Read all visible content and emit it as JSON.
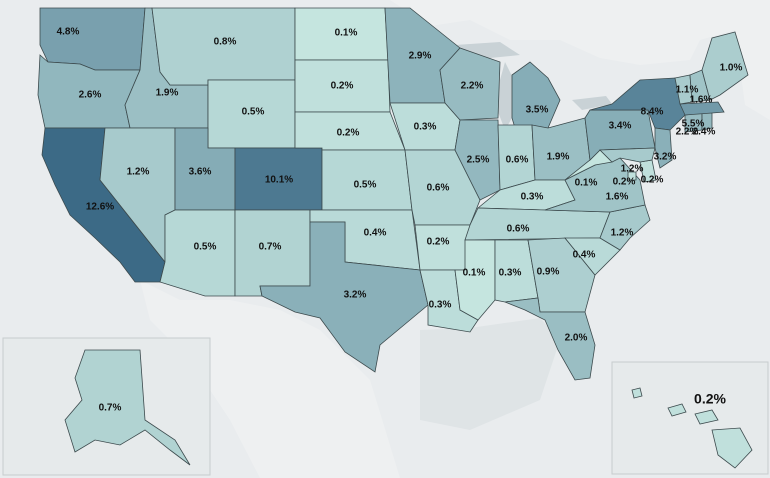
{
  "map": {
    "type": "choropleth",
    "region": "United States",
    "color_scale": {
      "low": "#cfeee6",
      "high": "#3c6a86"
    },
    "states": [
      {
        "id": "WA",
        "value": "4.8%"
      },
      {
        "id": "OR",
        "value": "2.6%"
      },
      {
        "id": "CA",
        "value": "12.6%"
      },
      {
        "id": "ID",
        "value": "1.9%"
      },
      {
        "id": "MT",
        "value": "0.8%"
      },
      {
        "id": "WY",
        "value": "0.5%"
      },
      {
        "id": "NV",
        "value": "1.2%"
      },
      {
        "id": "UT",
        "value": "3.6%"
      },
      {
        "id": "CO",
        "value": "10.1%"
      },
      {
        "id": "AZ",
        "value": "0.5%"
      },
      {
        "id": "NM",
        "value": "0.7%"
      },
      {
        "id": "ND",
        "value": "0.1%"
      },
      {
        "id": "SD",
        "value": "0.2%"
      },
      {
        "id": "NE",
        "value": "0.2%"
      },
      {
        "id": "KS",
        "value": "0.5%"
      },
      {
        "id": "OK",
        "value": "0.4%"
      },
      {
        "id": "TX",
        "value": "3.2%"
      },
      {
        "id": "MN",
        "value": "2.9%"
      },
      {
        "id": "IA",
        "value": "0.3%"
      },
      {
        "id": "MO",
        "value": "0.6%"
      },
      {
        "id": "AR",
        "value": "0.2%"
      },
      {
        "id": "LA",
        "value": "0.3%"
      },
      {
        "id": "WI",
        "value": "2.2%"
      },
      {
        "id": "IL",
        "value": "2.5%"
      },
      {
        "id": "MI",
        "value": "3.5%"
      },
      {
        "id": "IN",
        "value": "0.6%"
      },
      {
        "id": "OH",
        "value": "1.9%"
      },
      {
        "id": "KY",
        "value": "0.3%"
      },
      {
        "id": "TN",
        "value": "0.6%"
      },
      {
        "id": "MS",
        "value": "0.1%"
      },
      {
        "id": "AL",
        "value": "0.3%"
      },
      {
        "id": "GA",
        "value": "0.9%"
      },
      {
        "id": "FL",
        "value": "2.0%"
      },
      {
        "id": "SC",
        "value": "0.4%"
      },
      {
        "id": "NC",
        "value": "1.2%"
      },
      {
        "id": "VA",
        "value": "1.6%"
      },
      {
        "id": "WV",
        "value": "0.1%"
      },
      {
        "id": "PA",
        "value": "3.4%"
      },
      {
        "id": "NY",
        "value": "8.4%"
      },
      {
        "id": "VT",
        "value": "1.1%"
      },
      {
        "id": "NH",
        "value": "1.6%"
      },
      {
        "id": "ME",
        "value": "1.0%"
      },
      {
        "id": "MA",
        "value": "5.5%"
      },
      {
        "id": "CT",
        "value": "2.2%"
      },
      {
        "id": "RI",
        "value": "2.4%"
      },
      {
        "id": "NJ",
        "value": "3.2%"
      },
      {
        "id": "DE",
        "value": "0.2%"
      },
      {
        "id": "MD",
        "value": "1.2%"
      },
      {
        "id": "DC",
        "value": "0.2%"
      },
      {
        "id": "AK",
        "value": "0.7%"
      },
      {
        "id": "HI",
        "value": "0.2%"
      }
    ]
  }
}
